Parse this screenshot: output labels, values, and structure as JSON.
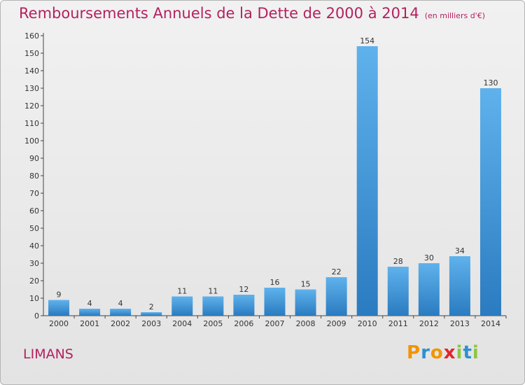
{
  "header": {
    "title": "Remboursements Annuels de la Dette de 2000 à 2014",
    "subtitle": "(en milliers d'€)"
  },
  "footer": {
    "place": "LIMANS",
    "logo_text": "Proxiti"
  },
  "colors": {
    "title": "#b3215f",
    "bar_light": "#5fb2ec",
    "bar_dark": "#2a7bc0",
    "logo_letters": [
      "#f29400",
      "#2e90d0",
      "#f29400",
      "#e0262c",
      "#8dc63f",
      "#2e90d0",
      "#8dc63f"
    ]
  },
  "chart_data": {
    "type": "bar",
    "categories": [
      "2000",
      "2001",
      "2002",
      "2003",
      "2004",
      "2005",
      "2006",
      "2007",
      "2008",
      "2009",
      "2010",
      "2011",
      "2012",
      "2013",
      "2014"
    ],
    "values": [
      9,
      4,
      4,
      2,
      11,
      11,
      12,
      16,
      15,
      22,
      154,
      28,
      30,
      34,
      130
    ],
    "title": "Remboursements Annuels de la Dette de 2000 à 2014",
    "subtitle": "(en milliers d'€)",
    "xlabel": "",
    "ylabel": "",
    "ylim": [
      0,
      160
    ],
    "yticks": [
      0,
      10,
      20,
      30,
      40,
      50,
      60,
      70,
      80,
      90,
      100,
      110,
      120,
      130,
      140,
      150,
      160
    ],
    "grid": false,
    "data_labels": true
  }
}
